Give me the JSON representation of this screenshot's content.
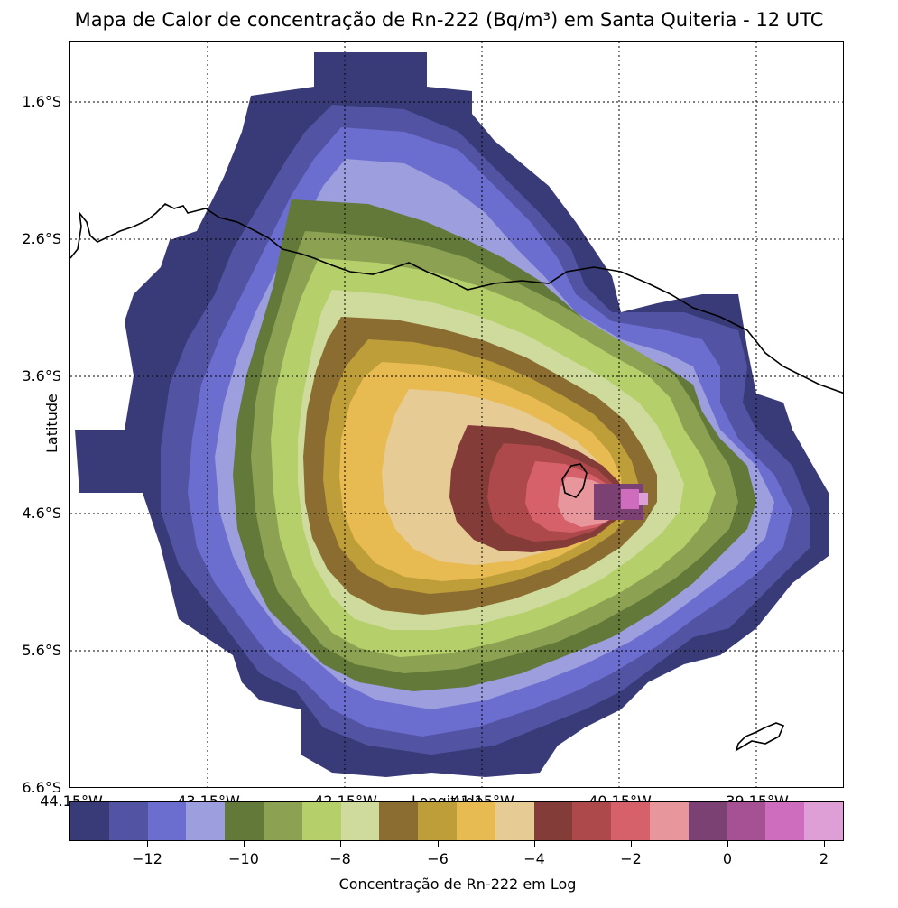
{
  "title": "Mapa de Calor de concentração de Rn-222 (Bq/m³) em Santa Quiteria - 12 UTC",
  "map": {
    "y_axis_label": "Latitude",
    "x_axis_label": "Longitude",
    "lat_ticks": [
      "1.6°S",
      "2.6°S",
      "3.6°S",
      "4.6°S",
      "5.6°S",
      "6.6°S"
    ],
    "lon_ticks": [
      "44.15°W",
      "43.15°W",
      "42.15°W",
      "41.15°W",
      "40.15°W",
      "39.15°W"
    ],
    "gridlines": "dotted",
    "coastline": true,
    "source_marker": "Santa Quiteria"
  },
  "colorbar": {
    "label": "Concentração de Rn-222 em Log",
    "tick_labels": [
      "−12",
      "−10",
      "−8",
      "−6",
      "−4",
      "−2",
      "0",
      "2"
    ],
    "range": [
      -13.6,
      2.4
    ],
    "colors": [
      "#393b79",
      "#5254a3",
      "#6b6ecf",
      "#9c9ede",
      "#637939",
      "#8ca252",
      "#b5cf6b",
      "#cedb9c",
      "#8c6d31",
      "#bd9e39",
      "#e7ba52",
      "#e7cb94",
      "#843c39",
      "#ad494a",
      "#d6616b",
      "#e7969c",
      "#7b4173",
      "#a55194",
      "#ce6dbd",
      "#de9ed6"
    ]
  }
}
